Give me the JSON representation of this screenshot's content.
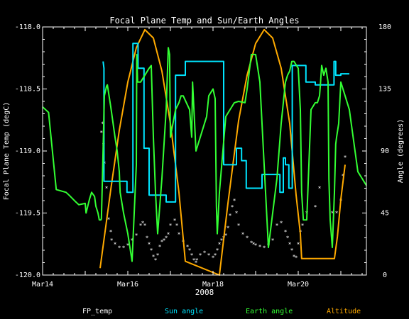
{
  "chart_data": {
    "type": "line",
    "title": "Focal Plane Temp and Sun/Earth Angles",
    "xlabel": "2008",
    "ylabel_left": "Focal Plane Temp (degC)",
    "ylabel_right": "Angle (degrees)",
    "x_unit": "day of March 2008",
    "xlim": [
      14,
      21.6
    ],
    "ylim_left": [
      -120.0,
      -118.0
    ],
    "ylim_right": [
      0,
      180
    ],
    "x_ticks": [
      {
        "value": 14,
        "label": "Mar14"
      },
      {
        "value": 16,
        "label": "Mar16"
      },
      {
        "value": 18,
        "label": "Mar18"
      },
      {
        "value": 20,
        "label": "Mar20"
      }
    ],
    "y_ticks_left": [
      {
        "value": -118.0,
        "label": "-118.0"
      },
      {
        "value": -118.5,
        "label": "-118.5"
      },
      {
        "value": -119.0,
        "label": "-119.0"
      },
      {
        "value": -119.5,
        "label": "-119.5"
      },
      {
        "value": -120.0,
        "label": "-120.0"
      }
    ],
    "y_ticks_right": [
      {
        "value": 0,
        "label": "0"
      },
      {
        "value": 45,
        "label": "45"
      },
      {
        "value": 90,
        "label": "90"
      },
      {
        "value": 135,
        "label": "135"
      },
      {
        "value": 180,
        "label": "180"
      }
    ],
    "grid": false,
    "legend_position": "bottom",
    "series": [
      {
        "name": "FP_temp",
        "color": "#ffffff",
        "axis": "left",
        "style": "points",
        "x": [
          15.38,
          15.41,
          15.43,
          15.45,
          15.5,
          15.55,
          15.6,
          15.62,
          15.7,
          15.8,
          15.9,
          16.0,
          16.1,
          16.2,
          16.3,
          16.35,
          16.4,
          16.45,
          16.5,
          16.55,
          16.6,
          16.65,
          16.7,
          16.75,
          16.8,
          16.85,
          16.9,
          16.95,
          17.0,
          17.1,
          17.15,
          17.2,
          17.3,
          17.4,
          17.45,
          17.5,
          17.55,
          17.6,
          17.62,
          17.7,
          17.8,
          17.9,
          18.0,
          18.05,
          18.1,
          18.15,
          18.2,
          18.25,
          18.3,
          18.35,
          18.4,
          18.45,
          18.5,
          18.55,
          18.6,
          18.7,
          18.8,
          18.9,
          18.95,
          19.0,
          19.1,
          19.2,
          19.3,
          19.4,
          19.5,
          19.6,
          19.7,
          19.75,
          19.8,
          19.85,
          19.9,
          19.95,
          20.0,
          20.05,
          20.1,
          20.2,
          20.4,
          20.5,
          20.8,
          20.9,
          21.0,
          21.05,
          21.1
        ],
        "y": [
          -118.85,
          -118.78,
          -118.95,
          -119.1,
          -119.3,
          -119.55,
          -119.65,
          -119.72,
          -119.75,
          -119.78,
          -119.78,
          -119.76,
          -119.72,
          -119.68,
          -119.6,
          -119.58,
          -119.6,
          -119.7,
          -119.75,
          -119.8,
          -119.85,
          -119.88,
          -119.84,
          -119.77,
          -119.73,
          -119.72,
          -119.7,
          -119.67,
          -119.6,
          -119.56,
          -119.6,
          -119.67,
          -119.73,
          -119.77,
          -119.8,
          -119.84,
          -119.88,
          -119.9,
          -119.88,
          -119.84,
          -119.82,
          -119.84,
          -119.86,
          -119.84,
          -119.8,
          -119.75,
          -119.72,
          -119.7,
          -119.68,
          -119.62,
          -119.52,
          -119.45,
          -119.4,
          -119.5,
          -119.6,
          -119.67,
          -119.7,
          -119.74,
          -119.75,
          -119.76,
          -119.77,
          -119.78,
          -119.76,
          -119.72,
          -119.6,
          -119.58,
          -119.65,
          -119.7,
          -119.75,
          -119.8,
          -119.85,
          -119.86,
          -119.75,
          -119.65,
          -119.6,
          -119.5,
          -119.45,
          -119.3,
          -119.5,
          -119.5,
          -119.4,
          -119.2,
          -119.05
        ]
      },
      {
        "name": "Sun angle",
        "color": "#00e5ff",
        "axis": "right",
        "style": "line",
        "x": [
          15.42,
          15.44,
          15.44,
          15.98,
          15.98,
          16.12,
          16.12,
          16.24,
          16.24,
          16.38,
          16.38,
          16.5,
          16.5,
          16.9,
          16.9,
          17.12,
          17.12,
          17.35,
          17.35,
          18.25,
          18.25,
          18.55,
          18.55,
          18.67,
          18.67,
          18.78,
          18.78,
          19.15,
          19.15,
          19.57,
          19.57,
          19.65,
          19.65,
          19.7,
          19.7,
          19.78,
          19.78,
          19.86,
          19.86,
          20.18,
          20.18,
          20.4,
          20.4,
          20.84,
          20.84,
          20.88,
          20.88,
          21.0,
          21.0,
          21.2
        ],
        "y": [
          155,
          150,
          68,
          68,
          60,
          60,
          168,
          168,
          150,
          150,
          92,
          92,
          58,
          58,
          53,
          53,
          145,
          145,
          155,
          155,
          80,
          80,
          92,
          92,
          83,
          83,
          63,
          63,
          73,
          73,
          60,
          60,
          85,
          85,
          80,
          80,
          63,
          63,
          152,
          152,
          140,
          140,
          138,
          138,
          155,
          155,
          145,
          145,
          146,
          146
        ]
      },
      {
        "name": "Earth angle",
        "color": "#33ff33",
        "axis": "right",
        "style": "line",
        "x": [
          14.0,
          14.14,
          14.14,
          14.32,
          14.32,
          14.55,
          14.55,
          14.62,
          14.62,
          14.78,
          14.78,
          14.85,
          14.85,
          15.0,
          15.02,
          15.1,
          15.15,
          15.22,
          15.25,
          15.3,
          15.33,
          15.37,
          15.38,
          15.4,
          15.45,
          15.5,
          15.52,
          15.6,
          15.7,
          15.75,
          15.8,
          15.82,
          15.9,
          16.0,
          16.1,
          16.2,
          16.21,
          16.23,
          16.3,
          16.5,
          16.55,
          16.6,
          16.65,
          16.7,
          16.8,
          16.9,
          16.95,
          16.98,
          17.0,
          17.12,
          17.2,
          17.25,
          17.3,
          17.45,
          17.5,
          17.52,
          17.6,
          17.7,
          17.8,
          17.85,
          17.9,
          18.0,
          18.05,
          18.08,
          18.1,
          18.15,
          18.3,
          18.5,
          18.6,
          18.75,
          18.8,
          18.9,
          19.0,
          19.1,
          19.3,
          19.5,
          19.6,
          19.7,
          19.75,
          19.8,
          19.85,
          19.9,
          20.0,
          20.05,
          20.08,
          20.12,
          20.2,
          20.3,
          20.4,
          20.45,
          20.5,
          20.52,
          20.55,
          20.6,
          20.65,
          20.7,
          20.72,
          20.75,
          20.8,
          20.85,
          20.88,
          20.9,
          20.95,
          21.0,
          21.05,
          21.1,
          21.2,
          21.4,
          21.5,
          21.6
        ],
        "y": [
          122,
          118,
          118,
          62,
          62,
          60,
          60,
          58,
          58,
          53,
          53,
          51,
          51,
          52,
          45,
          55,
          60,
          57,
          50,
          45,
          40,
          40,
          41,
          65,
          130,
          137,
          138,
          122,
          100,
          90,
          75,
          60,
          45,
          30,
          10,
          80,
          160,
          140,
          140,
          150,
          152,
          100,
          60,
          30,
          70,
          120,
          165,
          160,
          100,
          120,
          125,
          130,
          130,
          120,
          100,
          140,
          90,
          100,
          110,
          115,
          130,
          135,
          128,
          50,
          30,
          60,
          115,
          125,
          126,
          125,
          135,
          160,
          160,
          140,
          20,
          70,
          110,
          140,
          145,
          148,
          155,
          155,
          150,
          120,
          60,
          40,
          40,
          120,
          125,
          125,
          130,
          138,
          152,
          145,
          150,
          140,
          70,
          40,
          20,
          60,
          95,
          100,
          110,
          140,
          135,
          130,
          120,
          75,
          70,
          65
        ]
      },
      {
        "name": "Altitude",
        "color": "#ffaa00",
        "axis": "right",
        "style": "line",
        "x": [
          15.35,
          15.6,
          15.8,
          16.0,
          16.2,
          16.4,
          16.6,
          16.8,
          17.0,
          17.2,
          17.35,
          18.15,
          18.35,
          18.6,
          18.8,
          19.0,
          19.2,
          19.4,
          19.6,
          19.8,
          19.95,
          20.05,
          20.08,
          20.85,
          20.92,
          21.0,
          21.1
        ],
        "y": [
          5,
          62,
          105,
          140,
          165,
          178,
          172,
          148,
          110,
          60,
          10,
          0,
          52,
          112,
          145,
          168,
          178,
          172,
          150,
          110,
          58,
          30,
          12,
          12,
          28,
          55,
          80
        ]
      }
    ]
  }
}
